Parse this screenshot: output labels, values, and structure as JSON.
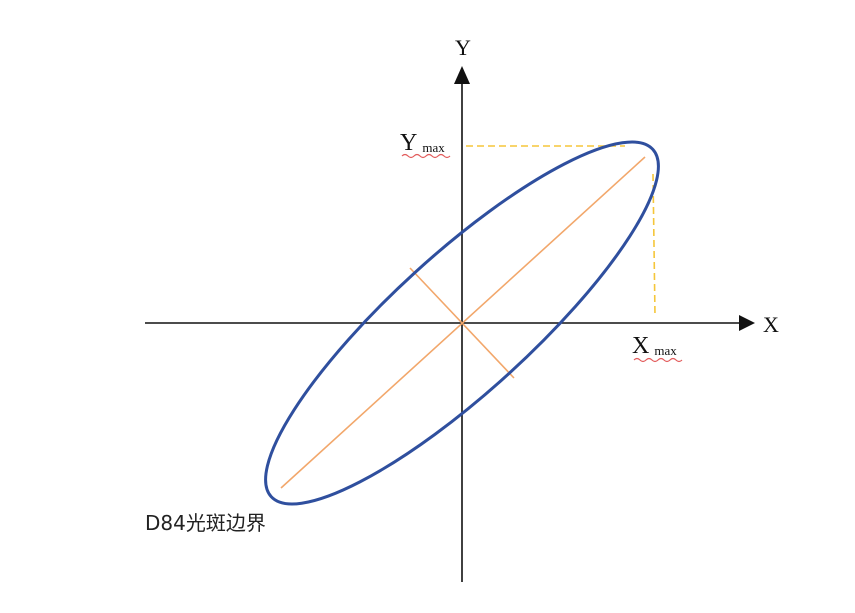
{
  "diagram": {
    "axis_x_label": "X",
    "axis_y_label": "Y",
    "y_max_main": "Y",
    "y_max_sub": "max",
    "x_max_main": "X",
    "x_max_sub": "max",
    "boundary_label": "D84光斑边界",
    "colors": {
      "axis": "#111111",
      "ellipse": "#2f4f9e",
      "principal_axes": "#f2a76b",
      "guides": "#f5c63a",
      "underline": "#e25a5a"
    }
  }
}
